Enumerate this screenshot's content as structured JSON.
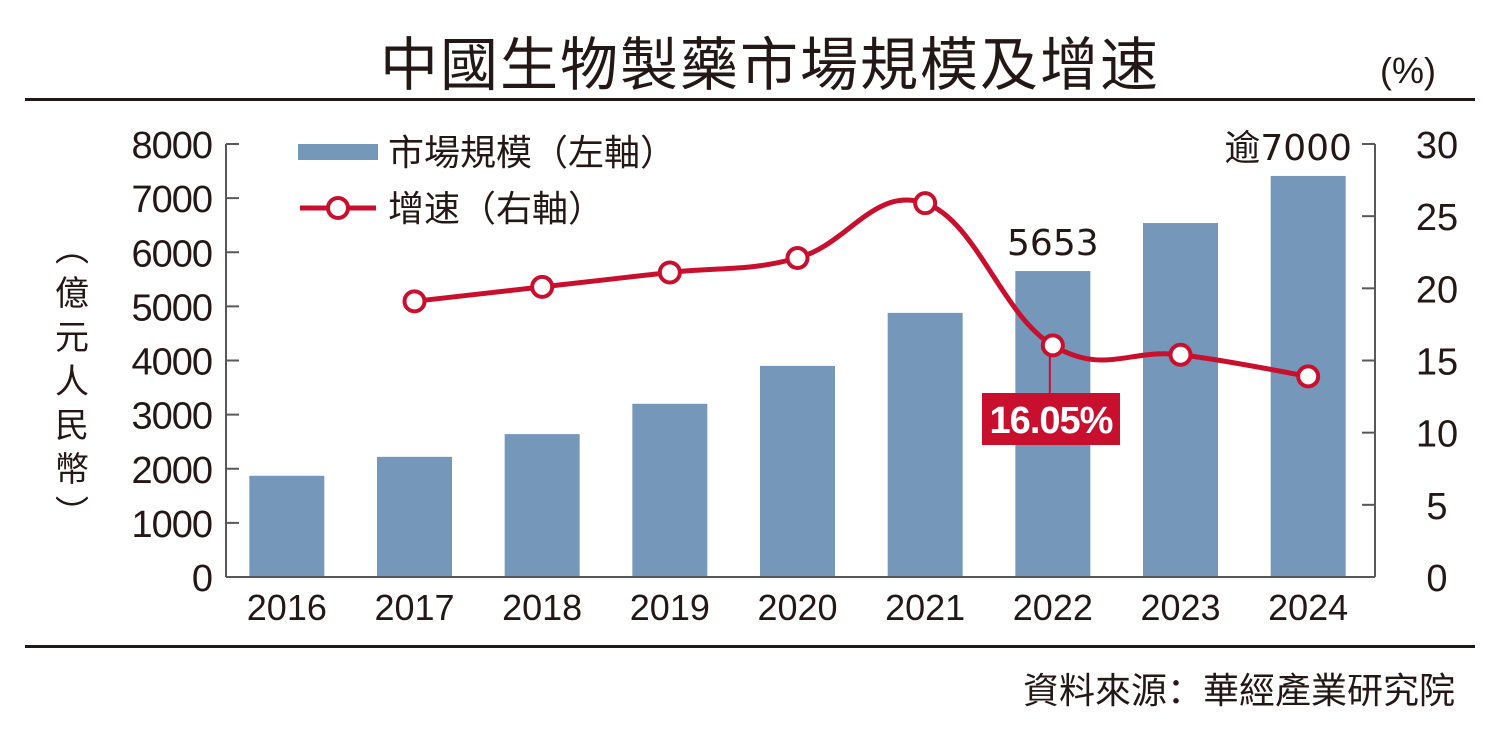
{
  "title": "中國生物製藥市場規模及增速",
  "right_unit": "(%)",
  "source": "資料來源：華經產業研究院",
  "colors": {
    "bar": "#7597b9",
    "line": "#c8102e",
    "axis": "#595757",
    "text": "#231815",
    "callout_bg": "#c8102e",
    "callout_text": "#ffffff"
  },
  "chart_data": {
    "type": "bar",
    "title": "中國生物製藥市場規模及增速",
    "categories": [
      "2016",
      "2017",
      "2018",
      "2019",
      "2020",
      "2021",
      "2022",
      "2023",
      "2024"
    ],
    "series": [
      {
        "name": "市場規模（左軸）",
        "type": "bar",
        "axis": "left",
        "values": [
          1870,
          2220,
          2640,
          3200,
          3900,
          4880,
          5653,
          6540,
          7410
        ]
      },
      {
        "name": "增速（右軸）",
        "type": "line",
        "axis": "right",
        "values": [
          null,
          19.1,
          20.1,
          21.1,
          22.1,
          25.9,
          16.05,
          15.4,
          13.9
        ]
      }
    ],
    "left_axis": {
      "label": "（億元人民幣）",
      "label_chars": [
        "︵",
        "億",
        "元",
        "人",
        "民",
        "幣",
        "︶"
      ],
      "range": [
        0,
        8000
      ],
      "ticks": [
        "0",
        "1000",
        "2000",
        "3000",
        "4000",
        "5000",
        "6000",
        "7000",
        "8000"
      ]
    },
    "right_axis": {
      "label": "(%)",
      "range": [
        0,
        30
      ],
      "ticks": [
        "0",
        "5",
        "10",
        "15",
        "20",
        "25",
        "30"
      ]
    },
    "legend": {
      "position": "top-left",
      "items": [
        {
          "label": "市場規模（左軸）",
          "marker": "bar"
        },
        {
          "label": "增速（右軸）",
          "marker": "line-circle"
        }
      ]
    },
    "annotations": [
      {
        "category": "2022",
        "series": "bar",
        "text": "5653"
      },
      {
        "category": "2024",
        "series": "bar",
        "text": "逾7000"
      },
      {
        "category": "2022",
        "series": "line",
        "text": "16.05%",
        "style": "callout"
      }
    ],
    "grid": false
  }
}
